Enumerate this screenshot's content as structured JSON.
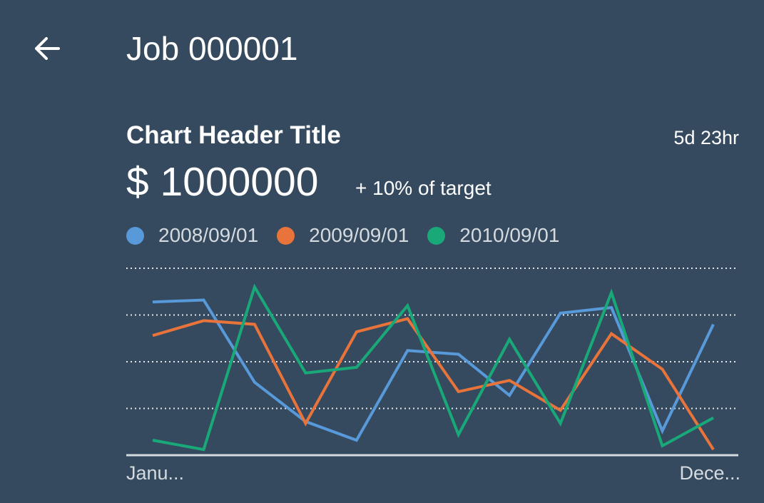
{
  "header": {
    "title": "Job 000001",
    "back_icon": "arrow-left-icon"
  },
  "card": {
    "title": "Chart Header Title",
    "timestamp": "5d 23hr",
    "kpi_value": "$ 1000000",
    "kpi_delta": "+ 10% of target"
  },
  "colors": {
    "background": "#354a5f",
    "series_1": "#5899da",
    "series_2": "#e8743b",
    "series_3": "#19a979",
    "gridline": "#ffffff",
    "axis_label": "#d5dadf"
  },
  "chart_data": {
    "type": "line",
    "legend_position": "top-left",
    "grid": true,
    "x_start_label": "Janu...",
    "x_end_label": "Dece...",
    "x_count": 12,
    "ylim": [
      0,
      100
    ],
    "series": [
      {
        "name": "2008/09/01",
        "color": "#5899da",
        "values": [
          82,
          83,
          39,
          18,
          8,
          56,
          54,
          32,
          76,
          79,
          13,
          70
        ]
      },
      {
        "name": "2009/09/01",
        "color": "#e8743b",
        "values": [
          64,
          72,
          70,
          17,
          66,
          73,
          34,
          40,
          24,
          65,
          46,
          3
        ]
      },
      {
        "name": "2010/09/01",
        "color": "#19a979",
        "values": [
          8,
          3,
          90,
          44,
          47,
          80,
          11,
          62,
          17,
          87,
          5,
          20
        ]
      }
    ]
  }
}
